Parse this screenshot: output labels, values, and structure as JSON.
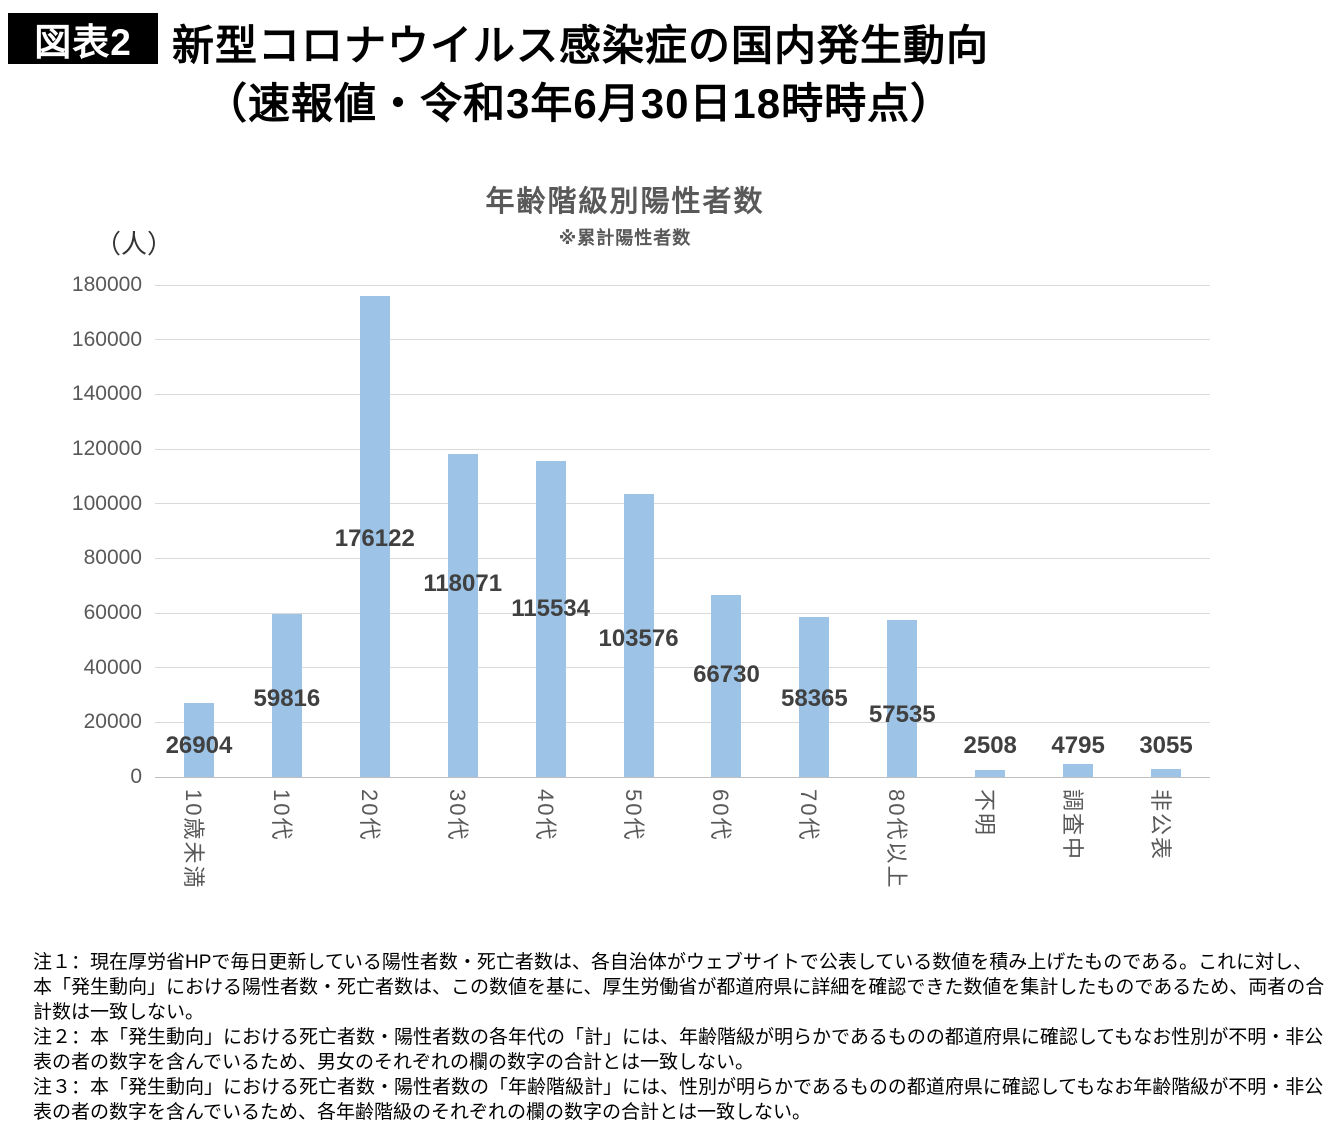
{
  "header": {
    "tag": "図表2",
    "title_line1": "新型コロナウイルス感染症の国内発生動向",
    "title_line2": "（速報値・令和3年6月30日18時時点）"
  },
  "chart_data": {
    "type": "bar",
    "title": "年齢階級別陽性者数",
    "subtitle": "※累計陽性者数",
    "unit_label": "（人）",
    "categories": [
      "10歳未満",
      "10代",
      "20代",
      "30代",
      "40代",
      "50代",
      "60代",
      "70代",
      "80代以上",
      "不明",
      "調査中",
      "非公表"
    ],
    "values": [
      26904,
      59816,
      176122,
      118071,
      115534,
      103576,
      66730,
      58365,
      57535,
      2508,
      4795,
      3055
    ],
    "ylim": [
      0,
      180000
    ],
    "ytick_step": 20000,
    "grid": true,
    "legend": "none",
    "bar_color": "#9DC3E6",
    "grid_color": "#D9D9D9",
    "axis_text_color": "#595959",
    "value_label_color": "#404040"
  },
  "notes": [
    "注１：現在厚労省HPで毎日更新している陽性者数・死亡者数は、各自治体がウェブサイトで公表している数値を積み上げたものである。これに対し、本「発生動向」における陽性者数・死亡者数は、この数値を基に、厚生労働省が都道府県に詳細を確認できた数値を集計したものであるため、両者の合計数は一致しない。",
    "注２：本「発生動向」における死亡者数・陽性者数の各年代の「計」には、年齢階級が明らかであるものの都道府県に確認してもなお性別が不明・非公表の者の数字を含んでいるため、男女のそれぞれの欄の数字の合計とは一致しない。",
    "注３：本「発生動向」における死亡者数・陽性者数の「年齢階級計」には、性別が明らかであるものの都道府県に確認してもなお年齢階級が不明・非公表の者の数字を含んでいるため、各年齢階級のそれぞれの欄の数字の合計とは一致しない。"
  ]
}
